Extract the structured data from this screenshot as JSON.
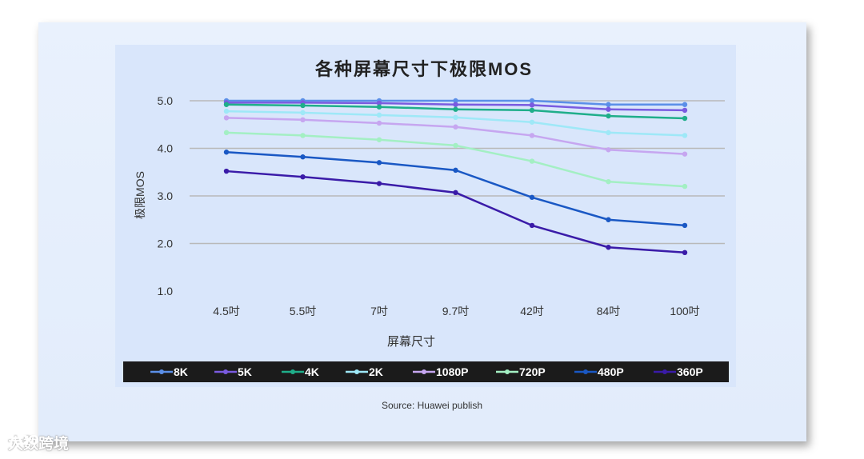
{
  "chart_data": {
    "type": "line",
    "title": "各种屏幕尺寸下极限MOS",
    "xlabel": "屏幕尺寸",
    "ylabel": "极限MOS",
    "categories": [
      "4.5吋",
      "5.5吋",
      "7吋",
      "9.7吋",
      "42吋",
      "84吋",
      "100吋"
    ],
    "yticks": [
      "1.0",
      "2.0",
      "3.0",
      "4.0",
      "5.0"
    ],
    "ylim": [
      1.0,
      5.0
    ],
    "grid": true,
    "legend_position": "bottom",
    "series": [
      {
        "name": "8K",
        "color": "#5b8fe8",
        "values": [
          5.0,
          5.0,
          5.0,
          5.0,
          5.0,
          4.92,
          4.92
        ]
      },
      {
        "name": "5K",
        "color": "#7a5be0",
        "values": [
          4.96,
          4.96,
          4.95,
          4.92,
          4.91,
          4.82,
          4.8
        ]
      },
      {
        "name": "4K",
        "color": "#1fae8a",
        "values": [
          4.92,
          4.9,
          4.87,
          4.82,
          4.8,
          4.68,
          4.63
        ]
      },
      {
        "name": "2K",
        "color": "#9ee8f7",
        "values": [
          4.78,
          4.75,
          4.7,
          4.65,
          4.55,
          4.33,
          4.27
        ]
      },
      {
        "name": "1080P",
        "color": "#c6a6f0",
        "values": [
          4.64,
          4.6,
          4.53,
          4.45,
          4.27,
          3.97,
          3.88
        ]
      },
      {
        "name": "720P",
        "color": "#a3efc3",
        "values": [
          4.33,
          4.27,
          4.18,
          4.06,
          3.73,
          3.3,
          3.2
        ]
      },
      {
        "name": "480P",
        "color": "#1a58c4",
        "values": [
          3.92,
          3.82,
          3.7,
          3.54,
          2.97,
          2.5,
          2.38
        ]
      },
      {
        "name": "360P",
        "color": "#3a1ba8",
        "values": [
          3.52,
          3.4,
          3.26,
          3.07,
          2.38,
          1.92,
          1.81
        ]
      }
    ]
  },
  "footer": {
    "source": "Source: Huawei publish"
  },
  "watermark": {
    "text": "大数跨境",
    "color": "#ffffff"
  }
}
